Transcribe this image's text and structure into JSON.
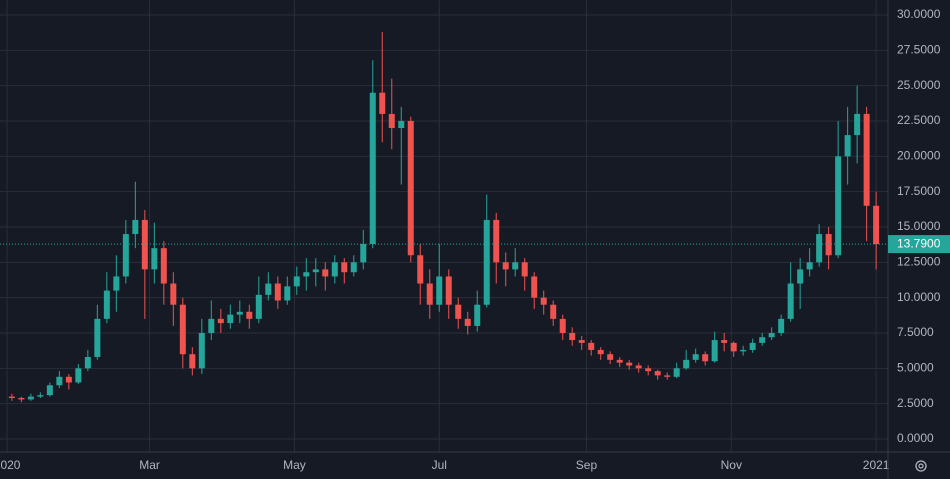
{
  "chart_data": {
    "type": "candlestick",
    "up_color": "#26a69a",
    "down_color": "#ef5350",
    "grid": true,
    "x": [
      2,
      6,
      10,
      14,
      18,
      22,
      26,
      30,
      34,
      38,
      42,
      46,
      50,
      54,
      58,
      62,
      66,
      70,
      74,
      78,
      82,
      86,
      90,
      94,
      98,
      102,
      106,
      110,
      114,
      118,
      122,
      126,
      130,
      134,
      138,
      142,
      146,
      150,
      154,
      158,
      162,
      166,
      170,
      174,
      178,
      182,
      186,
      190,
      194,
      198,
      202,
      206,
      210,
      214,
      218,
      222,
      226,
      230,
      234,
      238,
      242,
      246,
      250,
      254,
      258,
      262,
      266,
      270,
      274,
      278,
      282,
      286,
      290,
      294,
      298,
      302,
      306,
      310,
      314,
      318,
      322,
      326,
      330,
      334,
      338,
      342,
      346,
      350,
      354,
      358,
      362,
      366
    ],
    "open": [
      3.0,
      2.9,
      2.8,
      3.0,
      3.1,
      3.8,
      4.4,
      4.0,
      5.0,
      5.8,
      8.5,
      10.5,
      11.5,
      14.5,
      15.5,
      12,
      13.5,
      11,
      9.5,
      6.0,
      5.0,
      7.5,
      8.5,
      8.2,
      8.8,
      9.0,
      8.5,
      10.2,
      11,
      9.8,
      10.8,
      11.5,
      11.8,
      12,
      11.5,
      12.5,
      11.8,
      12.5,
      13.8,
      24.5,
      23,
      22,
      22.5,
      13,
      11,
      9.5,
      11.5,
      9.5,
      8.5,
      8,
      9.5,
      15.5,
      12.5,
      12,
      12.5,
      11.5,
      10,
      9.5,
      8.5,
      7.5,
      7,
      6.8,
      6.3,
      6,
      5.6,
      5.4,
      5.2,
      5,
      4.8,
      4.5,
      4.4,
      5.0,
      5.6,
      6,
      5.5,
      7,
      6.8,
      6.2,
      6.3,
      6.8,
      7.2,
      7.5,
      8.5,
      11,
      12,
      12.5,
      14.5,
      13,
      20,
      21.5,
      23,
      16.5
    ],
    "high": [
      3.2,
      3.0,
      3.2,
      3.3,
      4.0,
      4.8,
      4.6,
      5.3,
      6.3,
      9.5,
      11.8,
      13.0,
      15.5,
      18.2,
      16.2,
      15.3,
      14.0,
      11.8,
      10.0,
      6.5,
      8.5,
      9.8,
      9.2,
      9.5,
      9.8,
      9.5,
      11.5,
      11.8,
      11.5,
      11.5,
      12.2,
      12.8,
      12.8,
      12.5,
      13.0,
      12.8,
      13.0,
      14.8,
      26.8,
      28.8,
      25.5,
      23.5,
      22.8,
      13.8,
      12.0,
      13.8,
      12.0,
      10.0,
      9.0,
      10.5,
      17.3,
      16.0,
      13.2,
      13.5,
      12.8,
      11.8,
      10.5,
      9.8,
      8.8,
      7.9,
      7.3,
      7.0,
      6.5,
      6.2,
      5.8,
      5.6,
      5.4,
      5.2,
      4.9,
      4.7,
      5.4,
      6.3,
      6.4,
      6.2,
      7.6,
      7.5,
      6.9,
      6.6,
      7.1,
      7.5,
      7.9,
      8.8,
      12.5,
      12.8,
      13.5,
      15.2,
      15.0,
      22.5,
      23.5,
      25,
      23.5,
      17.5
    ],
    "low": [
      2.7,
      2.6,
      2.7,
      2.9,
      3.0,
      3.6,
      3.5,
      3.9,
      4.8,
      5.6,
      8.2,
      9.0,
      11.0,
      13.5,
      8.5,
      11.0,
      9.5,
      8.0,
      5.0,
      4.5,
      4.6,
      7.0,
      7.5,
      7.8,
      8.2,
      7.8,
      8.2,
      9.8,
      9.2,
      9.5,
      10.2,
      10.5,
      10.8,
      10.5,
      11.0,
      11.0,
      11.5,
      12.0,
      13.5,
      21.0,
      20.5,
      18.0,
      12.5,
      9.5,
      8.5,
      9.0,
      8.5,
      7.8,
      7.4,
      7.6,
      9.3,
      11.0,
      10.8,
      11.5,
      10.5,
      9.2,
      8.8,
      8.0,
      7.0,
      6.6,
      6.3,
      5.9,
      5.6,
      5.3,
      5.1,
      4.9,
      4.7,
      4.5,
      4.2,
      4.2,
      4.3,
      4.9,
      5.4,
      5.2,
      5.4,
      6.2,
      5.8,
      5.9,
      6.1,
      6.6,
      7.0,
      7.3,
      8.3,
      9.2,
      11.5,
      12.2,
      12.0,
      12.8,
      18.0,
      19.5,
      14.0,
      12.0
    ],
    "close": [
      2.9,
      2.8,
      3.0,
      3.1,
      3.8,
      4.4,
      4.0,
      5.0,
      5.8,
      8.5,
      10.5,
      11.5,
      14.5,
      15.5,
      12,
      13.5,
      11,
      9.5,
      6.0,
      5.0,
      7.5,
      8.5,
      8.2,
      8.8,
      9.0,
      8.5,
      10.2,
      11,
      9.8,
      10.8,
      11.5,
      11.8,
      12,
      11.5,
      12.5,
      11.8,
      12.5,
      13.8,
      24.5,
      23,
      22,
      22.5,
      13,
      11,
      9.5,
      11.5,
      9.5,
      8.5,
      8,
      9.5,
      15.5,
      12.5,
      12,
      12.5,
      11.5,
      10,
      9.5,
      8.5,
      7.5,
      7,
      6.8,
      6.3,
      6,
      5.6,
      5.4,
      5.2,
      5,
      4.8,
      4.5,
      4.4,
      5.0,
      5.6,
      6,
      5.5,
      7,
      6.8,
      6.2,
      6.3,
      6.8,
      7.2,
      7.5,
      8.5,
      11,
      12,
      12.5,
      14.5,
      13,
      20,
      21.5,
      23,
      16.5,
      13.79
    ],
    "xlim": [
      -3,
      371
    ],
    "xticks": [
      {
        "value": 0,
        "label": "2020"
      },
      {
        "value": 60,
        "label": "Mar"
      },
      {
        "value": 121,
        "label": "May"
      },
      {
        "value": 182,
        "label": "Jul"
      },
      {
        "value": 244,
        "label": "Sep"
      },
      {
        "value": 305,
        "label": "Nov"
      },
      {
        "value": 366,
        "label": "2021"
      }
    ],
    "ylim": [
      -0.92,
      31.06
    ],
    "yticks": [
      {
        "value": 0,
        "label": "0.0000"
      },
      {
        "value": 2.5,
        "label": "2.5000"
      },
      {
        "value": 5,
        "label": "5.0000"
      },
      {
        "value": 7.5,
        "label": "7.5000"
      },
      {
        "value": 10,
        "label": "10.0000"
      },
      {
        "value": 12.5,
        "label": "12.5000"
      },
      {
        "value": 15,
        "label": "15.0000"
      },
      {
        "value": 17.5,
        "label": "17.5000"
      },
      {
        "value": 20,
        "label": "20.0000"
      },
      {
        "value": 22.5,
        "label": "22.5000"
      },
      {
        "value": 25,
        "label": "25.0000"
      },
      {
        "value": 27.5,
        "label": "27.5000"
      },
      {
        "value": 30,
        "label": "30.0000"
      }
    ],
    "last_price": {
      "value": 13.79,
      "label": "13.7900"
    }
  }
}
